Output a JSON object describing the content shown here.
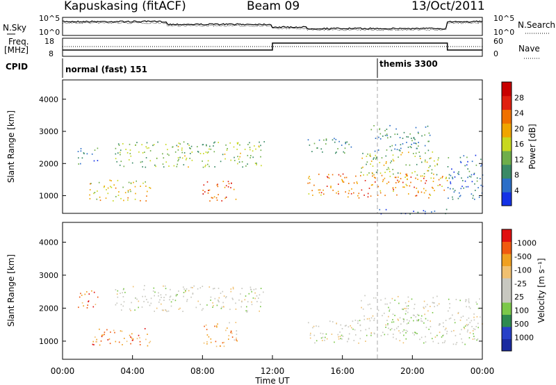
{
  "header": {
    "station": "Kapuskasing (fitACF)",
    "beam": "Beam 09",
    "date": "13/Oct/2011"
  },
  "top_strip": {
    "left_label": "N.Sky",
    "right_label": "N.Search",
    "left_ticks": [
      "10^5",
      "10^0"
    ],
    "right_ticks": [
      "10^5",
      "10^0"
    ]
  },
  "freq_strip": {
    "label_line1": "Freq.",
    "label_line2": "[MHz]",
    "right_label": "Nave",
    "left_ticks": [
      "18",
      "8"
    ],
    "right_ticks": [
      "60",
      "0"
    ]
  },
  "cpid": {
    "label": "CPID",
    "modes": [
      "normal (fast) 151",
      "themis 3300"
    ],
    "mode_switch_hour": 18.0
  },
  "colors": {
    "power": [
      "#1432e6",
      "#2c6fc8",
      "#3a8a66",
      "#6fae4a",
      "#c8d820",
      "#f0a500",
      "#f07000",
      "#e02010",
      "#c80000"
    ],
    "velocity": [
      "#e01010",
      "#f05a10",
      "#f0a020",
      "#f0c070",
      "#c8c8c0",
      "#c8c8c0",
      "#7cc84a",
      "#2e8a50",
      "#2840c8",
      "#1a2aa0"
    ]
  },
  "chart_data": [
    {
      "type": "heatmap",
      "name": "power",
      "ylabel": "Slant Range [km]",
      "yticks": [
        1000,
        2000,
        3000,
        4000
      ],
      "ylim": [
        450,
        4600
      ],
      "xlim_hours": [
        0,
        24
      ],
      "colorbar": {
        "label": "Power [dB]",
        "ticks": [
          "4",
          "8",
          "12",
          "16",
          "20",
          "24",
          "28"
        ],
        "range": [
          0,
          30
        ]
      },
      "blobs": [
        {
          "t0": 1.5,
          "t1": 5.0,
          "r0": 850,
          "r1": 1500,
          "level": 0.55
        },
        {
          "t0": 8.0,
          "t1": 10.0,
          "r0": 850,
          "r1": 1500,
          "level": 0.8
        },
        {
          "t0": 3.0,
          "t1": 11.5,
          "r0": 1900,
          "r1": 2700,
          "level": 0.4
        },
        {
          "t0": 0.8,
          "t1": 2.0,
          "r0": 2000,
          "r1": 2500,
          "level": 0.2
        },
        {
          "t0": 14.0,
          "t1": 22.0,
          "r0": 950,
          "r1": 1700,
          "level": 0.7
        },
        {
          "t0": 17.0,
          "t1": 21.5,
          "r0": 1600,
          "r1": 2400,
          "level": 0.45
        },
        {
          "t0": 17.5,
          "t1": 21.0,
          "r0": 2400,
          "r1": 3200,
          "level": 0.25
        },
        {
          "t0": 14.0,
          "t1": 16.5,
          "r0": 2300,
          "r1": 2800,
          "level": 0.25
        },
        {
          "t0": 22.0,
          "t1": 24.0,
          "r0": 850,
          "r1": 2300,
          "level": 0.15
        },
        {
          "t0": 18.0,
          "t1": 22.0,
          "r0": 450,
          "r1": 600,
          "level": 0.1
        }
      ]
    },
    {
      "type": "heatmap",
      "name": "velocity",
      "ylabel": "Slant Range [km]",
      "xlabel": "Time UT",
      "xticks": [
        "00:00",
        "04:00",
        "08:00",
        "12:00",
        "16:00",
        "20:00",
        "00:00"
      ],
      "yticks": [
        1000,
        2000,
        3000,
        4000
      ],
      "ylim": [
        450,
        4600
      ],
      "xlim_hours": [
        0,
        24
      ],
      "colorbar": {
        "label": "Velocity [m s⁻¹]",
        "ticks": [
          "1000",
          "500",
          "100",
          "25",
          "-25",
          "-100",
          "-500",
          "-1000"
        ],
        "range": [
          -1000,
          1000
        ]
      },
      "blobs": [
        {
          "t0": 1.5,
          "t1": 5.0,
          "r0": 850,
          "r1": 1400,
          "level": 0.2
        },
        {
          "t0": 8.0,
          "t1": 10.0,
          "r0": 850,
          "r1": 1600,
          "level": 0.25
        },
        {
          "t0": 3.0,
          "t1": 11.5,
          "r0": 1900,
          "r1": 2700,
          "level": 0.5
        },
        {
          "t0": 0.8,
          "t1": 2.0,
          "r0": 2000,
          "r1": 2600,
          "level": 0.15
        },
        {
          "t0": 14.0,
          "t1": 22.0,
          "r0": 950,
          "r1": 1700,
          "level": 0.5
        },
        {
          "t0": 17.0,
          "t1": 21.5,
          "r0": 1600,
          "r1": 2400,
          "level": 0.5
        },
        {
          "t0": 22.0,
          "t1": 24.0,
          "r0": 850,
          "r1": 2300,
          "level": 0.5
        }
      ]
    }
  ]
}
